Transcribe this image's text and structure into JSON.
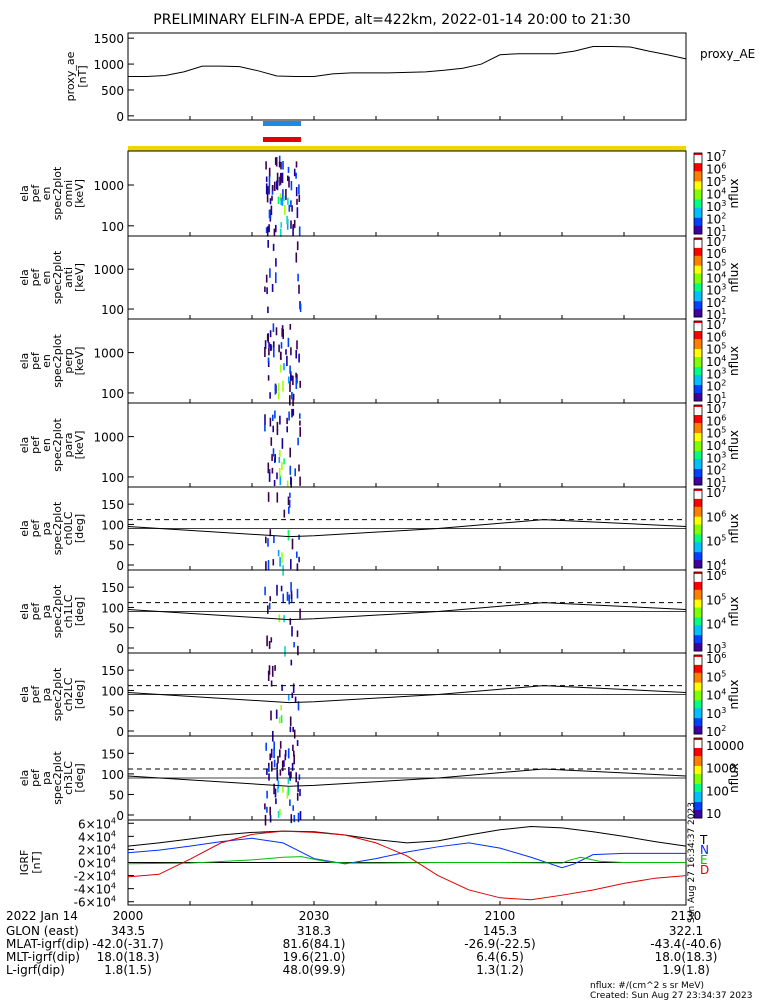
{
  "title": "PRELIMINARY ELFIN-A EPDE, alt=422km, 2022-01-14 20:00 to 21:30",
  "footer_note_1": "nflux: #/(cm^2 s sr MeV)",
  "footer_note_2": "Created: Sun Aug 27 23:34:37 2023",
  "side_stamp": "Sun Aug 27 16:34:37 2023",
  "colors": {
    "blue_bar": "#1e88e5",
    "red_bar": "#e00000",
    "yellow_bar": "#f2d400",
    "T": "#000000",
    "N": "#0030ff",
    "E": "#00c000",
    "D": "#e00000"
  },
  "colorbar_nflux": {
    "label": "nflux",
    "ticks_std": [
      "10",
      "10",
      "10",
      "10",
      "10",
      "10",
      "10"
    ],
    "exps_std": [
      "7",
      "6",
      "5",
      "4",
      "3",
      "2",
      "1"
    ]
  },
  "chart_data": [
    {
      "type": "line",
      "id": "proxy_ae",
      "ylabel_lines": [
        "proxy_ae",
        "[nT]"
      ],
      "legend": "proxy_AE",
      "yticks": [
        "1500",
        "1000",
        "500",
        "0"
      ],
      "ylim": [
        -80,
        1600
      ],
      "x": [
        0,
        3,
        6,
        9,
        12,
        15,
        18,
        21,
        24,
        27,
        30,
        33,
        36,
        39,
        42,
        45,
        48,
        51,
        54,
        57,
        60,
        63,
        66,
        69,
        72,
        75,
        78,
        81,
        84,
        87,
        90
      ],
      "y": [
        760,
        760,
        780,
        850,
        960,
        960,
        950,
        870,
        770,
        760,
        760,
        810,
        830,
        830,
        830,
        840,
        850,
        880,
        920,
        1000,
        1180,
        1200,
        1200,
        1200,
        1250,
        1340,
        1340,
        1330,
        1250,
        1180,
        1100
      ]
    },
    {
      "type": "heatmap",
      "id": "omni",
      "ylabel_lines": [
        "ela",
        "pef",
        "en",
        "spec2plot",
        "omni",
        "[keV]"
      ],
      "yticks": [
        "1000",
        "100"
      ],
      "colorbar_exps": [
        "7",
        "6",
        "5",
        "4",
        "3",
        "2",
        "1"
      ]
    },
    {
      "type": "heatmap",
      "id": "anti",
      "ylabel_lines": [
        "ela",
        "pef",
        "en",
        "spec2plot",
        "anti",
        "[keV]"
      ],
      "yticks": [
        "1000",
        "100"
      ],
      "colorbar_exps": [
        "7",
        "6",
        "5",
        "4",
        "3",
        "2",
        "1"
      ]
    },
    {
      "type": "heatmap",
      "id": "perp",
      "ylabel_lines": [
        "ela",
        "pef",
        "en",
        "spec2plot",
        "perp",
        "[keV]"
      ],
      "yticks": [
        "1000",
        "100"
      ],
      "colorbar_exps": [
        "7",
        "6",
        "5",
        "4",
        "3",
        "2",
        "1"
      ]
    },
    {
      "type": "heatmap",
      "id": "para",
      "ylabel_lines": [
        "ela",
        "pef",
        "en",
        "spec2plot",
        "para",
        "[keV]"
      ],
      "yticks": [
        "1000",
        "100"
      ],
      "colorbar_exps": [
        "7",
        "6",
        "5",
        "4",
        "3",
        "2",
        "1"
      ]
    },
    {
      "type": "heatmap",
      "id": "ch0LC",
      "ylabel_lines": [
        "ela",
        "pef",
        "pa",
        "spec2plot",
        "ch0LC",
        "[deg]"
      ],
      "yticks": [
        "150",
        "100",
        "50",
        "0"
      ],
      "colorbar_exps": [
        "7",
        "6",
        "5",
        "4"
      ]
    },
    {
      "type": "heatmap",
      "id": "ch1LC",
      "ylabel_lines": [
        "ela",
        "pef",
        "pa",
        "spec2plot",
        "ch1LC",
        "[deg]"
      ],
      "yticks": [
        "150",
        "100",
        "50",
        "0"
      ],
      "colorbar_exps": [
        "6",
        "5",
        "4",
        "3"
      ]
    },
    {
      "type": "heatmap",
      "id": "ch2LC",
      "ylabel_lines": [
        "ela",
        "pef",
        "pa",
        "spec2plot",
        "ch2LC",
        "[deg]"
      ],
      "yticks": [
        "150",
        "100",
        "50",
        "0"
      ],
      "colorbar_exps": [
        "6",
        "5",
        "4",
        "3",
        "2"
      ]
    },
    {
      "type": "heatmap",
      "id": "ch3LC",
      "ylabel_lines": [
        "ela",
        "pef",
        "pa",
        "spec2plot",
        "ch3LC",
        "[deg]"
      ],
      "yticks": [
        "150",
        "100",
        "50",
        "0"
      ],
      "colorbar_plain": [
        "10000",
        "1000",
        "100",
        "10"
      ]
    },
    {
      "type": "line",
      "id": "igrf",
      "ylabel_lines": [
        "IGRF",
        "[nT]"
      ],
      "ytick_mant": [
        "6",
        "4",
        "2",
        "0",
        "-2",
        "-4",
        "-6"
      ],
      "ytick_exp": "4",
      "ylim": [
        -65000,
        65000
      ],
      "series": [
        {
          "name": "T",
          "x": [
            0,
            5,
            10,
            15,
            20,
            25,
            30,
            35,
            40,
            45,
            50,
            55,
            60,
            65,
            70,
            75,
            80,
            85,
            90
          ],
          "y": [
            25000,
            30000,
            36000,
            42000,
            46000,
            48000,
            47000,
            42000,
            35000,
            30000,
            33000,
            42000,
            50000,
            55000,
            53000,
            47000,
            40000,
            32000,
            25000
          ]
        },
        {
          "name": "N",
          "x": [
            0,
            5,
            10,
            15,
            20,
            25,
            30,
            35,
            40,
            45,
            50,
            55,
            60,
            65,
            70,
            72,
            75,
            80,
            85,
            90
          ],
          "y": [
            15000,
            19000,
            25000,
            32000,
            37000,
            30000,
            6000,
            -2000,
            6000,
            16000,
            24000,
            30000,
            22000,
            8000,
            -8000,
            -2000,
            12000,
            14000,
            14000,
            14000
          ]
        },
        {
          "name": "E",
          "x": [
            0,
            10,
            20,
            25,
            28,
            30,
            33,
            36,
            40,
            50,
            60,
            70,
            71,
            73,
            76,
            80,
            85,
            90
          ],
          "y": [
            -2000,
            -1000,
            4000,
            8000,
            9000,
            5000,
            0,
            -1000,
            -1000,
            0,
            0,
            -1000,
            3000,
            8000,
            2000,
            0,
            0,
            0
          ]
        },
        {
          "name": "D",
          "x": [
            0,
            5,
            10,
            15,
            20,
            25,
            30,
            35,
            40,
            45,
            50,
            55,
            60,
            65,
            70,
            75,
            80,
            85,
            90
          ],
          "y": [
            -22000,
            -18000,
            5000,
            30000,
            43000,
            48000,
            46000,
            42000,
            30000,
            10000,
            -20000,
            -42000,
            -54000,
            -57000,
            -50000,
            -42000,
            -32000,
            -24000,
            -20000
          ]
        }
      ]
    }
  ],
  "xaxis": {
    "row_labels": [
      "2022 Jan 14",
      "GLON (east)",
      "MLAT-igrf(dip)",
      "MLT-igrf(dip)",
      "L-igrf(dip)"
    ],
    "columns": [
      {
        "time": "2000",
        "vals": [
          "343.5",
          "-42.0(-31.7)",
          "18.0(18.3)",
          "1.8(1.5)"
        ]
      },
      {
        "time": "2030",
        "vals": [
          "318.3",
          "81.6(84.1)",
          "19.6(21.0)",
          "48.0(99.9)"
        ]
      },
      {
        "time": "2100",
        "vals": [
          "145.3",
          "-26.9(-22.5)",
          "6.4(6.5)",
          "1.3(1.2)"
        ]
      },
      {
        "time": "2130",
        "vals": [
          "322.1",
          "-43.4(-40.6)",
          "18.0(18.3)",
          "1.9(1.8)"
        ]
      }
    ]
  }
}
